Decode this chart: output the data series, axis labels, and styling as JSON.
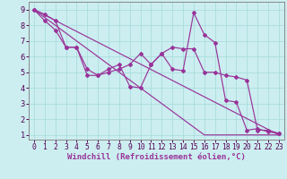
{
  "xlabel": "Windchill (Refroidissement éolien,°C)",
  "bg_color": "#cceef0",
  "grid_color": "#aadddd",
  "line_color": "#993399",
  "xlim": [
    -0.5,
    23.5
  ],
  "ylim": [
    0.7,
    9.5
  ],
  "xticks": [
    0,
    1,
    2,
    3,
    4,
    5,
    6,
    7,
    8,
    9,
    10,
    11,
    12,
    13,
    14,
    15,
    16,
    17,
    18,
    19,
    20,
    21,
    22,
    23
  ],
  "yticks": [
    1,
    2,
    3,
    4,
    5,
    6,
    7,
    8,
    9
  ],
  "line1_x": [
    0,
    1,
    2,
    3,
    4,
    5,
    6,
    7,
    8,
    9,
    10,
    11,
    12,
    13,
    14,
    15,
    16,
    17,
    18,
    19,
    20,
    21,
    22,
    23
  ],
  "line1_y": [
    9.0,
    8.5,
    8.0,
    7.5,
    7.0,
    6.5,
    6.0,
    5.5,
    5.0,
    4.5,
    4.0,
    3.5,
    3.0,
    2.5,
    2.0,
    1.5,
    1.0,
    1.0,
    1.0,
    1.0,
    1.0,
    1.0,
    1.0,
    1.0
  ],
  "line2_x": [
    0,
    23
  ],
  "line2_y": [
    9.0,
    1.0
  ],
  "line3_x": [
    0,
    1,
    2,
    3,
    4,
    5,
    6,
    7,
    8,
    9,
    10,
    11,
    12,
    13,
    14,
    15,
    16,
    17,
    18,
    19,
    20,
    21,
    22,
    23
  ],
  "line3_y": [
    9.0,
    8.7,
    8.3,
    6.6,
    6.6,
    5.2,
    4.8,
    5.0,
    5.2,
    5.5,
    6.2,
    5.5,
    6.2,
    6.6,
    6.5,
    6.5,
    5.0,
    5.0,
    4.8,
    4.7,
    4.5,
    1.3,
    1.3,
    1.1
  ],
  "line4_x": [
    0,
    1,
    2,
    3,
    4,
    5,
    6,
    7,
    8,
    9,
    10,
    11,
    12,
    13,
    14,
    15,
    16,
    17,
    18,
    19,
    20,
    21,
    22,
    23
  ],
  "line4_y": [
    9.0,
    8.3,
    7.7,
    6.6,
    6.6,
    4.8,
    4.8,
    5.2,
    5.5,
    4.1,
    4.0,
    5.5,
    6.2,
    5.2,
    5.1,
    8.8,
    7.4,
    6.9,
    3.2,
    3.1,
    1.3,
    1.4,
    1.2,
    1.1
  ],
  "font_size": 6.5,
  "tick_font_size": 5.8
}
